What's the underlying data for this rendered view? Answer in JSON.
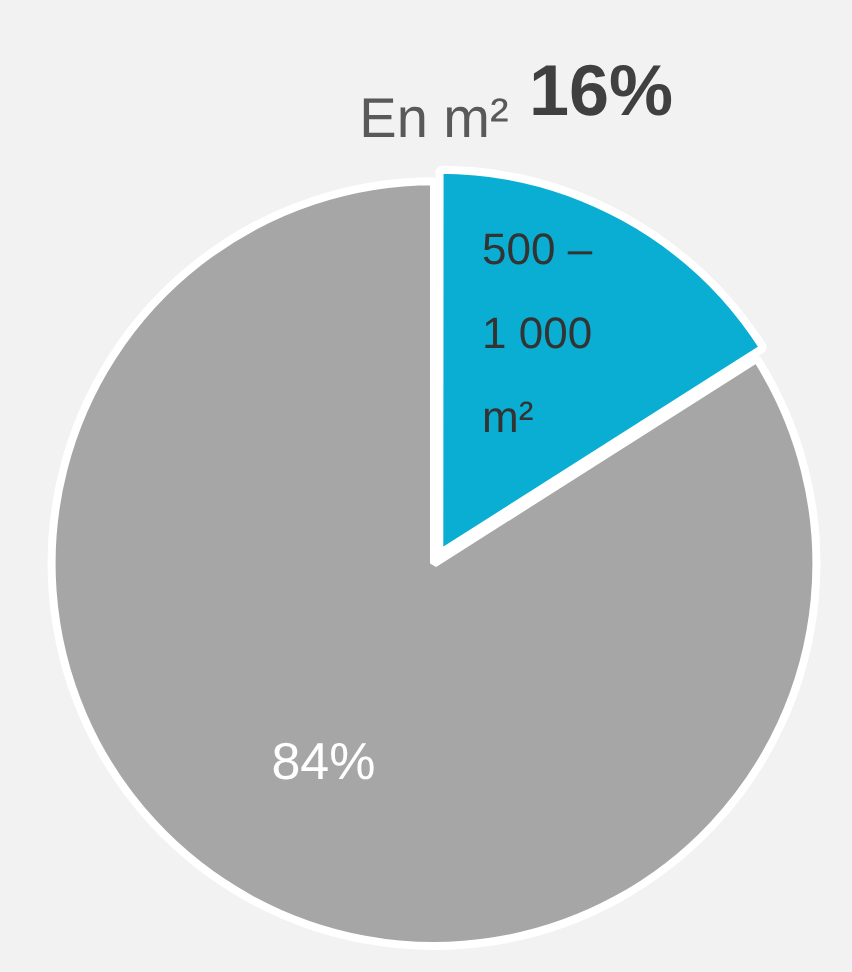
{
  "chart_data": {
    "type": "pie",
    "title": "En m²",
    "categories": [
      "500 – 1 000 m²",
      null
    ],
    "values": [
      16,
      84
    ],
    "colors": [
      "#0aaed3",
      "#a6a6a6"
    ],
    "value_labels": [
      "16%",
      "84%"
    ],
    "legend": false
  }
}
